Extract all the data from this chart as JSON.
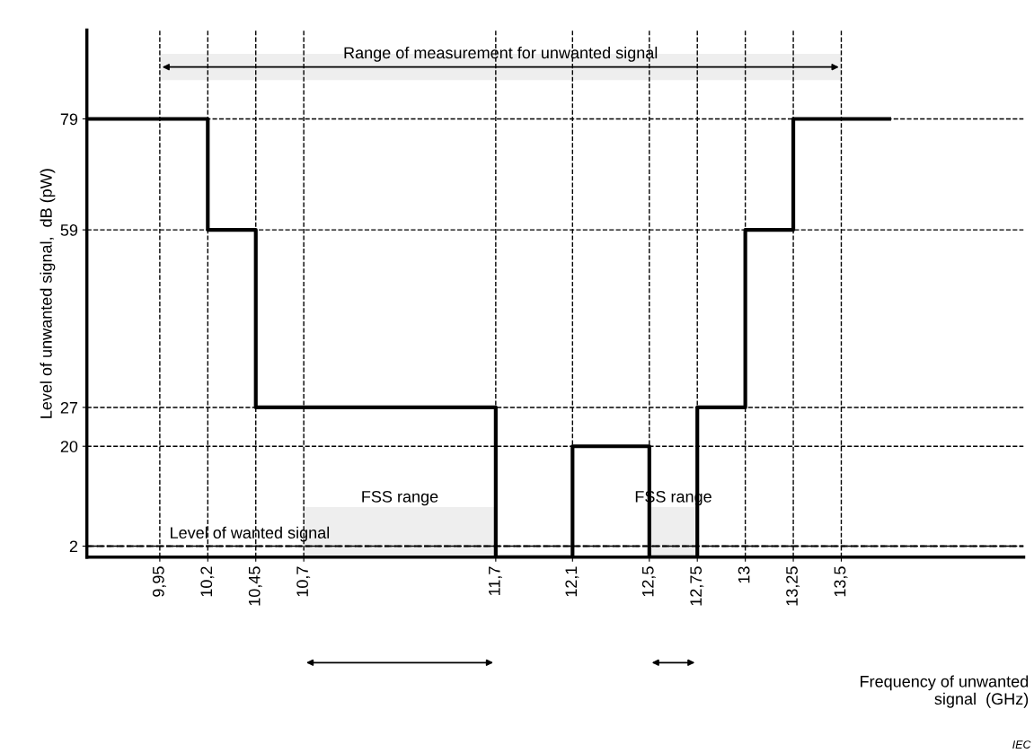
{
  "chart_data": {
    "type": "step",
    "xlabel": "Frequency of unwanted\nsignal  (GHz)",
    "ylabel": "Level of unwanted signal,  dB (pW)",
    "x": [
      9.57,
      10.2,
      10.45,
      11.7,
      12.1,
      12.5,
      12.75,
      13,
      13.25,
      13.75
    ],
    "values": [
      79,
      59,
      27,
      0,
      20,
      0,
      27,
      59,
      79,
      79
    ],
    "color": "#000000",
    "line_style": "solid",
    "grid": true,
    "xlim": [
      9.57,
      14.45
    ],
    "ylim": [
      0,
      95
    ],
    "xticks": [
      {
        "value": 9.95,
        "label": "9,95"
      },
      {
        "value": 10.2,
        "label": "10,2"
      },
      {
        "value": 10.45,
        "label": "10,45"
      },
      {
        "value": 10.7,
        "label": "10,7"
      },
      {
        "value": 11.7,
        "label": "11,7"
      },
      {
        "value": 12.1,
        "label": "12,1"
      },
      {
        "value": 12.5,
        "label": "12,5"
      },
      {
        "value": 12.75,
        "label": "12,75"
      },
      {
        "value": 13,
        "label": "13"
      },
      {
        "value": 13.25,
        "label": "13,25"
      },
      {
        "value": 13.5,
        "label": "13,5"
      }
    ],
    "yticks": [
      2,
      20,
      27,
      59,
      79
    ],
    "ref_lines": [
      {
        "axis": "y",
        "value": 2,
        "label": "Level of wanted signal",
        "line_style": "dashed"
      }
    ],
    "bands": [
      {
        "axis": "x",
        "from": 9.95,
        "to": 13.5,
        "label": "Range of measurement for unwanted signal"
      },
      {
        "axis": "x",
        "from": 10.7,
        "to": 11.7,
        "label": "FSS range"
      },
      {
        "axis": "x",
        "from": 12.5,
        "to": 12.75,
        "label": "FSS range"
      }
    ],
    "annotations": [
      "IEC"
    ]
  }
}
